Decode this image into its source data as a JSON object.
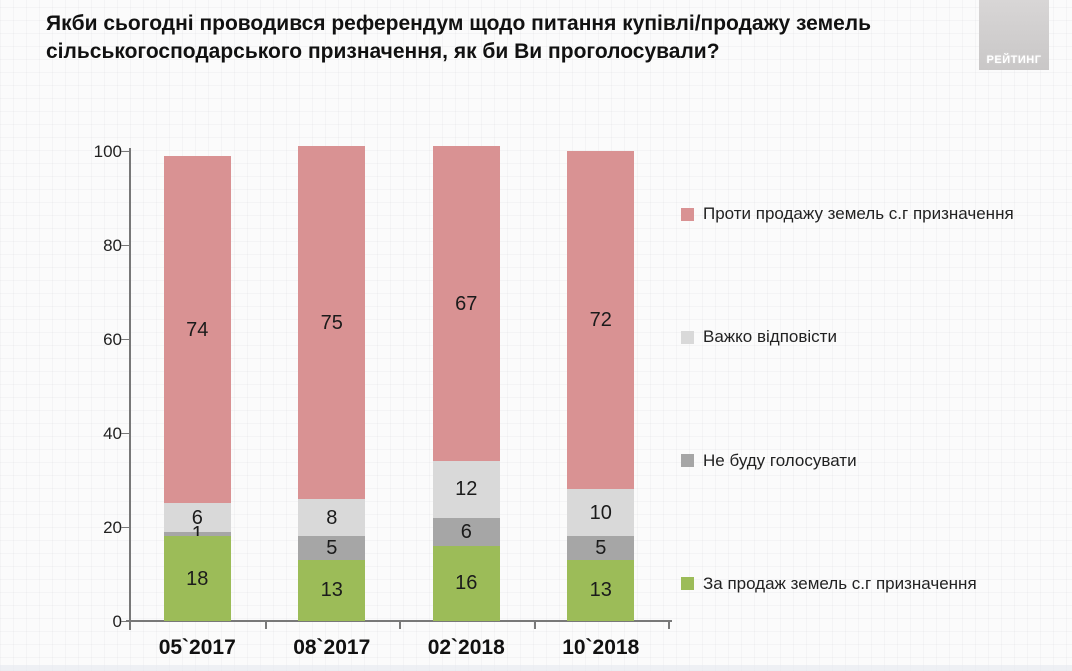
{
  "header": {
    "title": "Якби сьогодні проводився референдум щодо питання купівлі/продажу земель сільськогосподарського призначення, як би Ви проголосували?",
    "logo_text": "РЕЙТИНГ"
  },
  "chart_data": {
    "type": "bar",
    "stacked": true,
    "title": "Якби сьогодні проводився референдум щодо питання купівлі/продажу земель сільськогосподарського призначення, як би Ви проголосували?",
    "categories": [
      "05`2017",
      "08`2017",
      "02`2018",
      "10`2018"
    ],
    "series": [
      {
        "name": "За продаж земель с.г призначення",
        "color": "#9cbc58",
        "values": [
          18,
          13,
          16,
          13
        ]
      },
      {
        "name": "Не буду голосувати",
        "color": "#a6a6a6",
        "values": [
          1,
          5,
          6,
          5
        ]
      },
      {
        "name": "Важко відповісти",
        "color": "#d9d9d9",
        "values": [
          6,
          8,
          12,
          10
        ]
      },
      {
        "name": "Проти продажу земель с.г призначення",
        "color": "#d99293",
        "values": [
          74,
          75,
          67,
          72
        ]
      }
    ],
    "legend_order": [
      3,
      2,
      1,
      0
    ],
    "legend_position": "right",
    "yticks": [
      0,
      20,
      40,
      60,
      80,
      100
    ],
    "ylim": [
      0,
      100
    ],
    "xlabel": "",
    "ylabel": "",
    "grid": false
  }
}
